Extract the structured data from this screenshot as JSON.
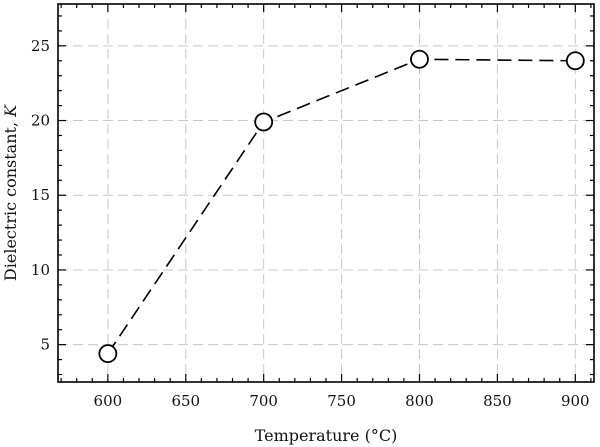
{
  "chart_data": {
    "type": "line",
    "title": "",
    "xlabel": "Temperature (°C)",
    "ylabel_prefix": "Dielectric constant, ",
    "ylabel_var": "K",
    "xlim": [
      568,
      912
    ],
    "ylim": [
      2.5,
      27.8
    ],
    "xticks": [
      600,
      650,
      700,
      750,
      800,
      850,
      900
    ],
    "yticks": [
      5,
      10,
      15,
      20,
      25
    ],
    "x_minor_step": 10,
    "y_minor_step": 1,
    "grid": true,
    "legend": "none",
    "series": [
      {
        "x": [
          600,
          700,
          800,
          900
        ],
        "y": [
          4.4,
          19.9,
          24.1,
          24.0
        ],
        "marker": "open-circle",
        "line_style": "dashed",
        "color": "#000000"
      }
    ]
  }
}
